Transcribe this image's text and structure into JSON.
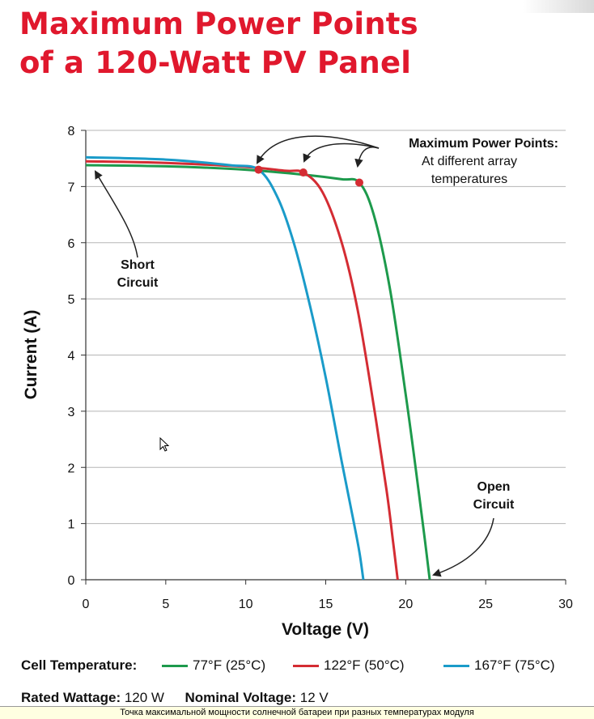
{
  "title_line1": "Maximum Power Points",
  "title_line2": "of a 120-Watt PV Panel",
  "chart_data": {
    "type": "line",
    "xlabel": "Voltage (V)",
    "ylabel": "Current (A)",
    "xlim": [
      0,
      30
    ],
    "ylim": [
      0,
      8
    ],
    "xticks": [
      0,
      5,
      10,
      15,
      20,
      25,
      30
    ],
    "yticks": [
      0,
      1,
      2,
      3,
      4,
      5,
      6,
      7,
      8
    ],
    "grid": "horizontal",
    "series": [
      {
        "name": "77°F (25°C)",
        "color": "#1d9a4c",
        "x": [
          0,
          5,
          10,
          14,
          16,
          17.1,
          18,
          19,
          20,
          20.8,
          21.2,
          21.5
        ],
        "y": [
          7.38,
          7.36,
          7.3,
          7.2,
          7.13,
          7.07,
          6.5,
          5.2,
          3.3,
          1.6,
          0.7,
          0
        ],
        "mpp": {
          "x": 17.1,
          "y": 7.07
        }
      },
      {
        "name": "122°F (50°C)",
        "color": "#d42c33",
        "x": [
          0,
          5,
          10,
          12.5,
          13.6,
          14.8,
          16,
          17,
          18,
          18.8,
          19.2,
          19.5
        ],
        "y": [
          7.45,
          7.42,
          7.35,
          7.28,
          7.25,
          6.9,
          6.0,
          4.8,
          3.1,
          1.6,
          0.7,
          0
        ],
        "mpp": {
          "x": 13.6,
          "y": 7.25
        }
      },
      {
        "name": "167°F (75°C)",
        "color": "#1a9bc9",
        "x": [
          0,
          5,
          9,
          10.8,
          12,
          13,
          14,
          15,
          16,
          16.7,
          17.1,
          17.35
        ],
        "y": [
          7.52,
          7.48,
          7.38,
          7.3,
          6.8,
          6.0,
          4.9,
          3.6,
          2.1,
          1.1,
          0.5,
          0
        ],
        "mpp": {
          "x": 10.8,
          "y": 7.3
        }
      }
    ],
    "annotations": {
      "mpp_title": "Maximum Power Points:",
      "mpp_line2": "At different array",
      "mpp_line3": "temperatures",
      "short_1": "Short",
      "short_2": "Circuit",
      "open_1": "Open",
      "open_2": "Circuit"
    }
  },
  "legend": {
    "title": "Cell Temperature:"
  },
  "specs": {
    "rated_label": "Rated Wattage:",
    "rated_value": "120 W",
    "nominal_label": "Nominal Voltage:",
    "nominal_value": "12 V"
  },
  "caption": "Точка максимальной мощности солнечной батареи при разных температурах модуля",
  "colors": {
    "title": "#e0182d",
    "grid": "#b5b5b5",
    "axis": "#333333"
  }
}
